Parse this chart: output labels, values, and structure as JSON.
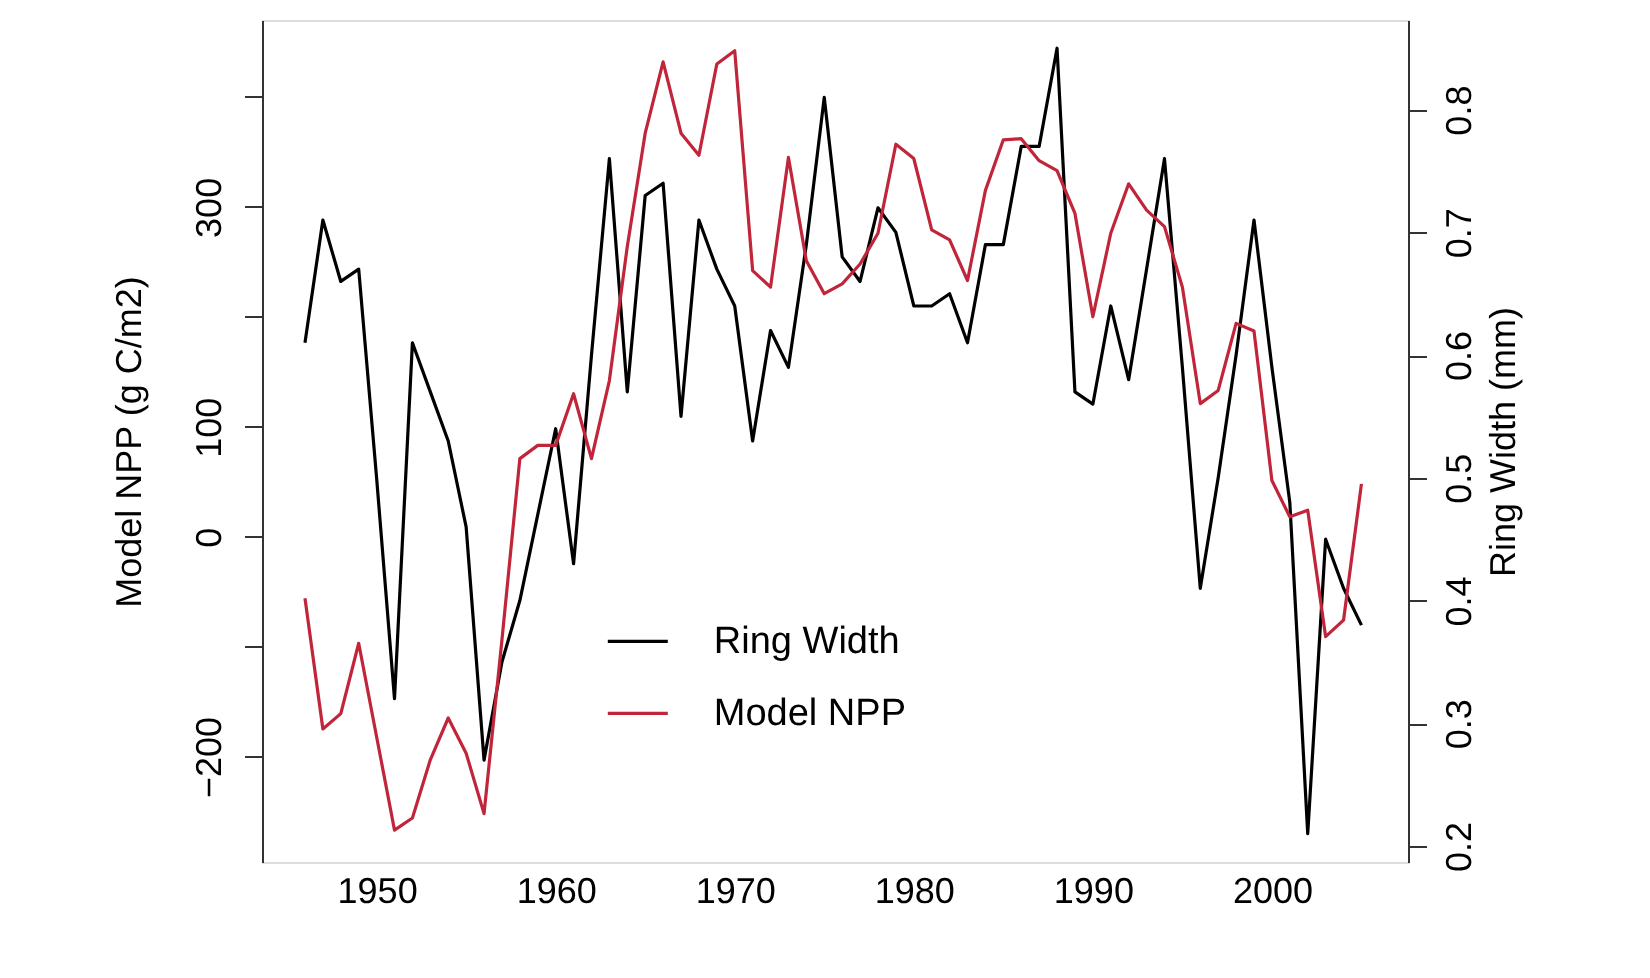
{
  "chart_data": {
    "type": "line",
    "xlabel": null,
    "ylabel": "Model NPP (g C/m2)",
    "y2label": "Ring Width (mm)",
    "x": [
      1946,
      1947,
      1948,
      1949,
      1950,
      1951,
      1952,
      1953,
      1954,
      1955,
      1956,
      1957,
      1958,
      1959,
      1960,
      1961,
      1962,
      1963,
      1964,
      1965,
      1966,
      1967,
      1968,
      1969,
      1970,
      1971,
      1972,
      1973,
      1974,
      1975,
      1976,
      1977,
      1978,
      1979,
      1980,
      1981,
      1982,
      1983,
      1984,
      1985,
      1986,
      1987,
      1988,
      1989,
      1990,
      1991,
      1992,
      1993,
      1994,
      1995,
      1996,
      1997,
      1998,
      1999,
      2000,
      2001,
      2002,
      2003,
      2004,
      2005
    ],
    "series": [
      {
        "name": "Ring Width",
        "color": "#000000",
        "axis": "y2",
        "values": [
          0.61,
          0.71,
          0.66,
          0.67,
          0.5,
          0.32,
          0.61,
          0.57,
          0.53,
          0.46,
          0.27,
          0.35,
          0.4,
          0.47,
          0.54,
          0.43,
          0.6,
          0.76,
          0.57,
          0.73,
          0.74,
          0.55,
          0.71,
          0.67,
          0.64,
          0.53,
          0.62,
          0.59,
          0.69,
          0.81,
          0.68,
          0.66,
          0.72,
          0.7,
          0.64,
          0.64,
          0.65,
          0.61,
          0.69,
          0.69,
          0.77,
          0.77,
          0.85,
          0.57,
          0.56,
          0.64,
          0.58,
          0.67,
          0.76,
          0.59,
          0.41,
          0.5,
          0.6,
          0.71,
          0.59,
          0.48,
          0.21,
          0.45,
          0.41,
          0.38
        ]
      },
      {
        "name": "Model NPP",
        "color": "#c0253a",
        "axis": "y",
        "values": [
          -56,
          -175,
          -161,
          -97,
          -182,
          -267,
          -256,
          -203,
          -165,
          -197,
          -252,
          -94,
          71,
          83,
          83,
          130,
          71,
          142,
          264,
          367,
          432,
          367,
          347,
          430,
          442,
          242,
          227,
          345,
          251,
          221,
          230,
          248,
          276,
          357,
          344,
          279,
          270,
          233,
          315,
          361,
          362,
          342,
          333,
          294,
          200,
          276,
          321,
          297,
          282,
          227,
          121,
          133,
          194,
          187,
          51,
          18,
          24,
          -91,
          -76,
          48
        ]
      }
    ],
    "xlim": [
      1943.6,
      2007.6
    ],
    "xticks": [
      1950,
      1960,
      1970,
      1980,
      1990,
      2000
    ],
    "ylim": [
      -296,
      470
    ],
    "yticks": [
      {
        "value": 400,
        "label": null
      },
      300,
      {
        "value": 200,
        "label": null
      },
      100,
      0,
      {
        "value": -100,
        "label": null
      },
      {
        "value": -200,
        "label": "−200"
      }
    ],
    "y2lim": [
      0.187,
      0.873
    ],
    "y2ticks": [
      0.2,
      0.3,
      0.4,
      0.5,
      0.6,
      0.7,
      0.8
    ],
    "legend": "bottom",
    "grid": false,
    "marker": "none",
    "line_style": "solid"
  }
}
